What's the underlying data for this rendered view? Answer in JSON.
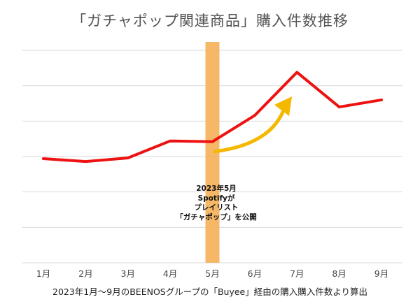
{
  "chart_data": {
    "type": "line",
    "title": "「ガチャポップ関連商品」購入件数推移",
    "categories": [
      "1月",
      "2月",
      "3月",
      "4月",
      "5月",
      "6月",
      "7月",
      "8月",
      "9月"
    ],
    "series": [
      {
        "values": [
          147,
          143,
          148,
          172,
          171,
          208,
          269,
          220,
          230
        ]
      }
    ],
    "y_axis_labels_visible": false,
    "ylim": [
      0,
      300
    ],
    "grid": true,
    "highlight": {
      "category": "5月",
      "color": "#f5b25a"
    },
    "line_color": "#ee1111",
    "arrow_color": "#f5b800",
    "annotation_lines": [
      "2023年5月",
      "Spotifyが",
      "プレイリスト",
      "「ガチャポップ」を公開"
    ],
    "footnote": "2023年1月〜9月のBEENOSグループの「Buyee」経由の購入購入件数より算出"
  }
}
